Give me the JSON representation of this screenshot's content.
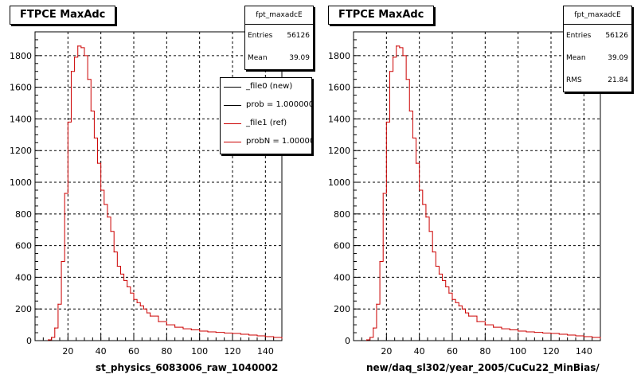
{
  "colors": {
    "data_line": "#cc0000",
    "ref_line": "#000000"
  },
  "left_panel": {
    "title": "FTPCE MaxAdc",
    "stats": {
      "name": "fpt_maxadcE",
      "rows": [
        {
          "label": "Entries",
          "value": "56126"
        },
        {
          "label": "Mean",
          "value": "39.09"
        }
      ]
    },
    "legend": [
      {
        "label": "_file0 (new)",
        "color": "#000000"
      },
      {
        "label": "prob = 1.000000",
        "color": "#000000"
      },
      {
        "label": "_file1 (ref)",
        "color": "#cc0000"
      },
      {
        "label": "probN = 1.000000",
        "color": "#cc0000"
      }
    ],
    "xtitle": "st_physics_6083006_raw_1040002"
  },
  "right_panel": {
    "title": "FTPCE MaxAdc",
    "stats": {
      "name": "fpt_maxadcE",
      "rows": [
        {
          "label": "Entries",
          "value": "56126"
        },
        {
          "label": "Mean",
          "value": "39.09"
        },
        {
          "label": "RMS",
          "value": "21.84"
        }
      ]
    },
    "xtitle": "new/daq_sl302/year_2005/CuCu22_MinBias/"
  },
  "chart_data": [
    {
      "type": "line",
      "title": "FTPCE MaxAdc",
      "xlabel": "st_physics_6083006_raw_1040002",
      "ylabel": "",
      "xlim": [
        0,
        150
      ],
      "ylim": [
        0,
        1950
      ],
      "x_ticks": [
        20,
        40,
        60,
        80,
        100,
        120,
        140
      ],
      "y_ticks": [
        200,
        400,
        600,
        800,
        1000,
        1200,
        1400,
        1600,
        1800
      ],
      "grid": true,
      "x": [
        8,
        10,
        12,
        14,
        16,
        18,
        20,
        22,
        24,
        26,
        28,
        30,
        32,
        34,
        36,
        38,
        40,
        42,
        44,
        46,
        48,
        50,
        52,
        54,
        56,
        58,
        60,
        62,
        64,
        66,
        68,
        70,
        75,
        80,
        85,
        90,
        95,
        100,
        105,
        110,
        115,
        120,
        125,
        130,
        135,
        140,
        145,
        150
      ],
      "series": [
        {
          "values": [
            5,
            20,
            80,
            230,
            500,
            930,
            1380,
            1700,
            1790,
            1860,
            1850,
            1800,
            1650,
            1450,
            1280,
            1120,
            950,
            860,
            780,
            690,
            560,
            470,
            420,
            380,
            340,
            300,
            260,
            240,
            220,
            200,
            175,
            155,
            120,
            100,
            85,
            75,
            68,
            60,
            55,
            52,
            48,
            45,
            40,
            35,
            30,
            25,
            20,
            15
          ]
        }
      ]
    },
    {
      "type": "line",
      "title": "FTPCE MaxAdc",
      "xlabel": "new/daq_sl302/year_2005/CuCu22_MinBias/",
      "ylabel": "",
      "xlim": [
        0,
        150
      ],
      "ylim": [
        0,
        1950
      ],
      "x_ticks": [
        20,
        40,
        60,
        80,
        100,
        120,
        140
      ],
      "y_ticks": [
        200,
        400,
        600,
        800,
        1000,
        1200,
        1400,
        1600,
        1800
      ],
      "grid": true,
      "x": [
        8,
        10,
        12,
        14,
        16,
        18,
        20,
        22,
        24,
        26,
        28,
        30,
        32,
        34,
        36,
        38,
        40,
        42,
        44,
        46,
        48,
        50,
        52,
        54,
        56,
        58,
        60,
        62,
        64,
        66,
        68,
        70,
        75,
        80,
        85,
        90,
        95,
        100,
        105,
        110,
        115,
        120,
        125,
        130,
        135,
        140,
        145,
        150
      ],
      "series": [
        {
          "values": [
            5,
            20,
            80,
            230,
            500,
            930,
            1380,
            1700,
            1790,
            1860,
            1850,
            1800,
            1650,
            1450,
            1280,
            1120,
            950,
            860,
            780,
            690,
            560,
            470,
            420,
            380,
            340,
            300,
            260,
            240,
            220,
            200,
            175,
            155,
            120,
            100,
            85,
            75,
            68,
            60,
            55,
            52,
            48,
            45,
            40,
            35,
            30,
            25,
            20,
            15
          ]
        }
      ]
    }
  ]
}
